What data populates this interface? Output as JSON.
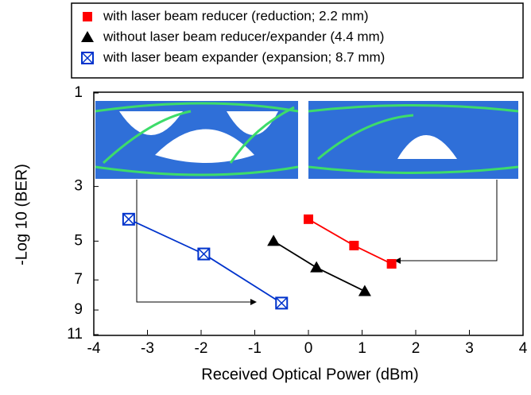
{
  "chart_data": {
    "type": "line",
    "x_label": "Received Optical Power (dBm)",
    "y_label": "-Log 10 (BER)",
    "xlim": [
      -4,
      4
    ],
    "xticks": [
      -4,
      -3,
      -2,
      -1,
      0,
      1,
      2,
      3,
      4
    ],
    "ylim": [
      1,
      11
    ],
    "yticks": [
      1,
      3,
      5,
      7,
      9,
      11
    ],
    "y_inverted": true,
    "series": [
      {
        "name": "with laser beam reducer (reduction; 2.2 mm)",
        "color": "#ff0000",
        "marker": "square",
        "x": [
          0.0,
          0.85,
          1.55
        ],
        "values": [
          4.1,
          5.2,
          6.1
        ]
      },
      {
        "name": "without laser beam reducer/expander (4.4 mm)",
        "color": "#000000",
        "marker": "triangle",
        "x": [
          -0.65,
          0.15,
          1.05
        ],
        "values": [
          5.0,
          6.3,
          7.7
        ]
      },
      {
        "name": "with laser beam expander (expansion; 8.7 mm)",
        "color": "#0033cc",
        "marker": "square-x",
        "x": [
          -3.35,
          -1.95,
          -0.5
        ],
        "values": [
          4.1,
          5.6,
          8.5
        ]
      }
    ]
  }
}
